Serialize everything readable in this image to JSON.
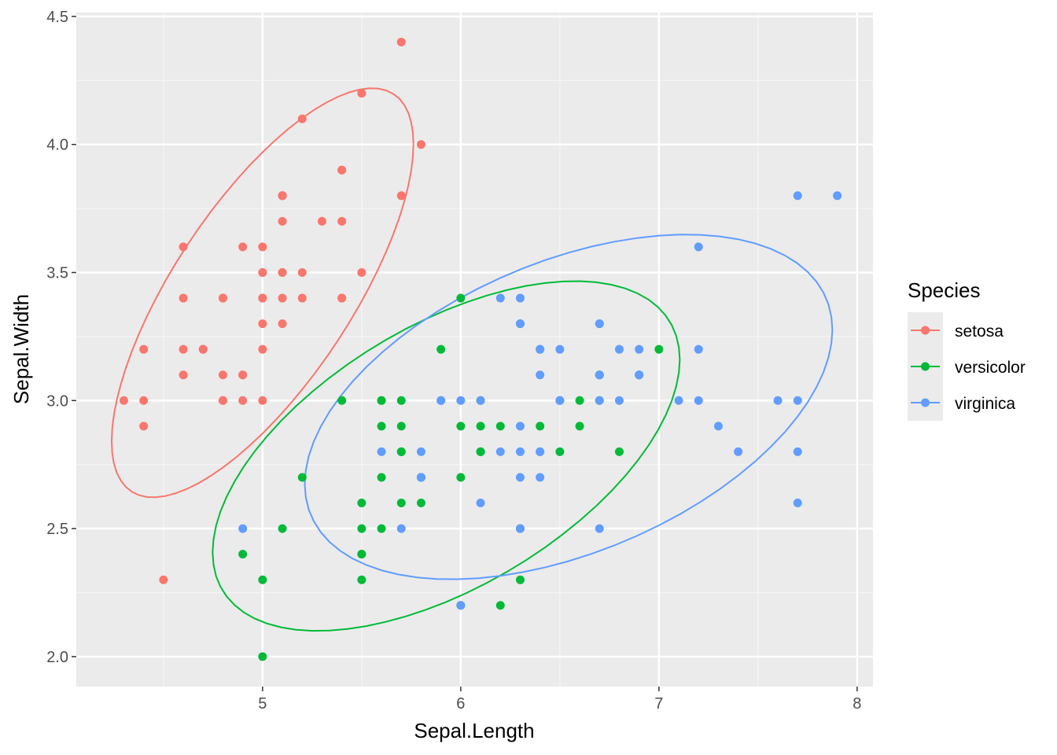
{
  "chart_data": {
    "type": "scatter",
    "xlabel": "Sepal.Length",
    "ylabel": "Sepal.Width",
    "xlim": [
      4.06,
      8.08
    ],
    "ylim": [
      1.883,
      4.515
    ],
    "x_ticks": [
      "5",
      "6",
      "7",
      "8"
    ],
    "y_ticks": [
      "2.0",
      "2.5",
      "3.0",
      "3.5",
      "4.0",
      "4.5"
    ],
    "grid": true,
    "overlay": "95% ellipse per series",
    "legend": {
      "title": "Species",
      "position": "right"
    },
    "series": [
      {
        "name": "setosa",
        "color": "#F8766D",
        "points": [
          [
            5.1,
            3.5
          ],
          [
            4.9,
            3.0
          ],
          [
            4.7,
            3.2
          ],
          [
            4.6,
            3.1
          ],
          [
            5.0,
            3.6
          ],
          [
            5.4,
            3.9
          ],
          [
            4.6,
            3.4
          ],
          [
            5.0,
            3.4
          ],
          [
            4.4,
            2.9
          ],
          [
            4.9,
            3.1
          ],
          [
            5.4,
            3.7
          ],
          [
            4.8,
            3.4
          ],
          [
            4.8,
            3.0
          ],
          [
            4.3,
            3.0
          ],
          [
            5.8,
            4.0
          ],
          [
            5.7,
            4.4
          ],
          [
            5.4,
            3.9
          ],
          [
            5.1,
            3.5
          ],
          [
            5.7,
            3.8
          ],
          [
            5.1,
            3.8
          ],
          [
            5.4,
            3.4
          ],
          [
            5.1,
            3.7
          ],
          [
            4.6,
            3.6
          ],
          [
            5.1,
            3.3
          ],
          [
            4.8,
            3.4
          ],
          [
            5.0,
            3.0
          ],
          [
            5.0,
            3.4
          ],
          [
            5.2,
            3.5
          ],
          [
            5.2,
            3.4
          ],
          [
            4.7,
            3.2
          ],
          [
            4.8,
            3.1
          ],
          [
            5.4,
            3.4
          ],
          [
            5.2,
            4.1
          ],
          [
            5.5,
            4.2
          ],
          [
            4.9,
            3.1
          ],
          [
            5.0,
            3.2
          ],
          [
            5.5,
            3.5
          ],
          [
            4.9,
            3.6
          ],
          [
            4.4,
            3.0
          ],
          [
            5.1,
            3.4
          ],
          [
            5.0,
            3.5
          ],
          [
            4.5,
            2.3
          ],
          [
            4.4,
            3.2
          ],
          [
            5.0,
            3.5
          ],
          [
            5.1,
            3.8
          ],
          [
            4.8,
            3.0
          ],
          [
            5.1,
            3.8
          ],
          [
            4.6,
            3.2
          ],
          [
            5.3,
            3.7
          ],
          [
            5.0,
            3.3
          ]
        ]
      },
      {
        "name": "versicolor",
        "color": "#00BA38",
        "points": [
          [
            7.0,
            3.2
          ],
          [
            6.4,
            3.2
          ],
          [
            6.9,
            3.1
          ],
          [
            5.5,
            2.3
          ],
          [
            6.5,
            2.8
          ],
          [
            5.7,
            2.8
          ],
          [
            6.3,
            3.3
          ],
          [
            4.9,
            2.4
          ],
          [
            6.6,
            2.9
          ],
          [
            5.2,
            2.7
          ],
          [
            5.0,
            2.0
          ],
          [
            5.9,
            3.0
          ],
          [
            6.0,
            2.2
          ],
          [
            6.1,
            2.9
          ],
          [
            5.6,
            2.9
          ],
          [
            6.7,
            3.1
          ],
          [
            5.6,
            3.0
          ],
          [
            5.8,
            2.7
          ],
          [
            6.2,
            2.2
          ],
          [
            5.6,
            2.5
          ],
          [
            5.9,
            3.2
          ],
          [
            6.1,
            2.8
          ],
          [
            6.3,
            2.5
          ],
          [
            6.1,
            2.8
          ],
          [
            6.4,
            2.9
          ],
          [
            6.6,
            3.0
          ],
          [
            6.8,
            2.8
          ],
          [
            6.7,
            3.0
          ],
          [
            6.0,
            2.9
          ],
          [
            5.7,
            2.6
          ],
          [
            5.5,
            2.4
          ],
          [
            5.5,
            2.4
          ],
          [
            5.8,
            2.7
          ],
          [
            6.0,
            2.7
          ],
          [
            5.4,
            3.0
          ],
          [
            6.0,
            3.4
          ],
          [
            6.7,
            3.1
          ],
          [
            6.3,
            2.3
          ],
          [
            5.6,
            3.0
          ],
          [
            5.5,
            2.5
          ],
          [
            5.5,
            2.6
          ],
          [
            6.1,
            3.0
          ],
          [
            5.8,
            2.6
          ],
          [
            5.0,
            2.3
          ],
          [
            5.6,
            2.7
          ],
          [
            5.7,
            3.0
          ],
          [
            5.7,
            2.9
          ],
          [
            6.2,
            2.9
          ],
          [
            5.1,
            2.5
          ],
          [
            5.7,
            2.8
          ]
        ]
      },
      {
        "name": "virginica",
        "color": "#619CFF",
        "points": [
          [
            6.3,
            3.3
          ],
          [
            5.8,
            2.7
          ],
          [
            7.1,
            3.0
          ],
          [
            6.3,
            2.9
          ],
          [
            6.5,
            3.0
          ],
          [
            7.6,
            3.0
          ],
          [
            4.9,
            2.5
          ],
          [
            7.3,
            2.9
          ],
          [
            6.7,
            2.5
          ],
          [
            7.2,
            3.6
          ],
          [
            6.5,
            3.2
          ],
          [
            6.4,
            2.7
          ],
          [
            6.8,
            3.0
          ],
          [
            5.7,
            2.5
          ],
          [
            5.8,
            2.8
          ],
          [
            6.4,
            3.2
          ],
          [
            6.5,
            3.0
          ],
          [
            7.7,
            3.8
          ],
          [
            7.7,
            2.6
          ],
          [
            6.0,
            2.2
          ],
          [
            6.9,
            3.2
          ],
          [
            5.6,
            2.8
          ],
          [
            7.7,
            2.8
          ],
          [
            6.3,
            2.7
          ],
          [
            6.7,
            3.3
          ],
          [
            7.2,
            3.2
          ],
          [
            6.2,
            2.8
          ],
          [
            6.1,
            3.0
          ],
          [
            6.4,
            2.8
          ],
          [
            7.2,
            3.0
          ],
          [
            7.4,
            2.8
          ],
          [
            7.9,
            3.8
          ],
          [
            6.4,
            2.8
          ],
          [
            6.3,
            2.8
          ],
          [
            6.1,
            2.6
          ],
          [
            7.7,
            3.0
          ],
          [
            6.3,
            3.4
          ],
          [
            6.4,
            3.1
          ],
          [
            6.0,
            3.0
          ],
          [
            6.9,
            3.1
          ],
          [
            6.7,
            3.1
          ],
          [
            6.9,
            3.1
          ],
          [
            5.8,
            2.7
          ],
          [
            6.8,
            3.2
          ],
          [
            6.7,
            3.3
          ],
          [
            6.7,
            3.0
          ],
          [
            6.3,
            2.5
          ],
          [
            6.5,
            3.0
          ],
          [
            6.2,
            3.4
          ],
          [
            5.9,
            3.0
          ]
        ]
      }
    ]
  }
}
